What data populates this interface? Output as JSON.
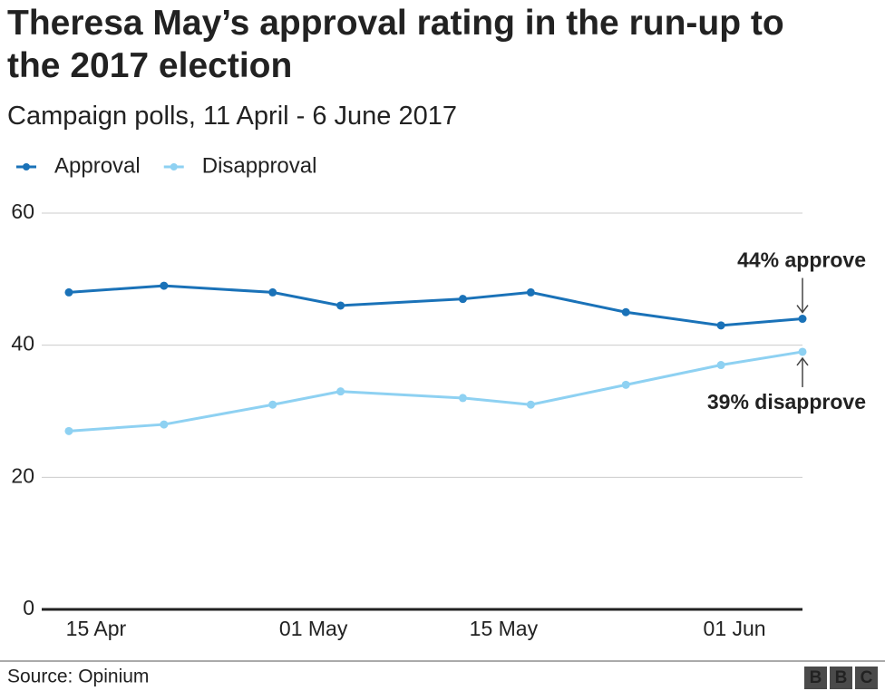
{
  "chart_data": {
    "type": "line",
    "title": "Theresa May’s approval rating in the run-up to the 2017 election",
    "subtitle": "Campaign polls, 11 April - 6 June 2017",
    "x": [
      "04-13",
      "04-20",
      "04-28",
      "05-03",
      "05-12",
      "05-17",
      "05-24",
      "05-31",
      "06-06"
    ],
    "xlim": [
      "04-11",
      "06-06"
    ],
    "xticks": [
      {
        "value": "04-15",
        "label": "15 Apr"
      },
      {
        "value": "05-01",
        "label": "01 May"
      },
      {
        "value": "05-15",
        "label": "15 May"
      },
      {
        "value": "06-01",
        "label": "01 Jun"
      }
    ],
    "ylim": [
      0,
      60
    ],
    "yticks": [
      0,
      20,
      40,
      60
    ],
    "grid": true,
    "series": [
      {
        "name": "Approval",
        "color": "#1a72b8",
        "values": [
          48,
          49,
          48,
          46,
          47,
          48,
          45,
          43,
          44
        ]
      },
      {
        "name": "Disapproval",
        "color": "#8ed1f2",
        "values": [
          27,
          28,
          31,
          33,
          32,
          31,
          34,
          37,
          39
        ]
      }
    ],
    "annotations": [
      "44% approve",
      "39% disapprove"
    ],
    "source": "Source: Opinium",
    "logo": [
      "B",
      "B",
      "C"
    ]
  }
}
